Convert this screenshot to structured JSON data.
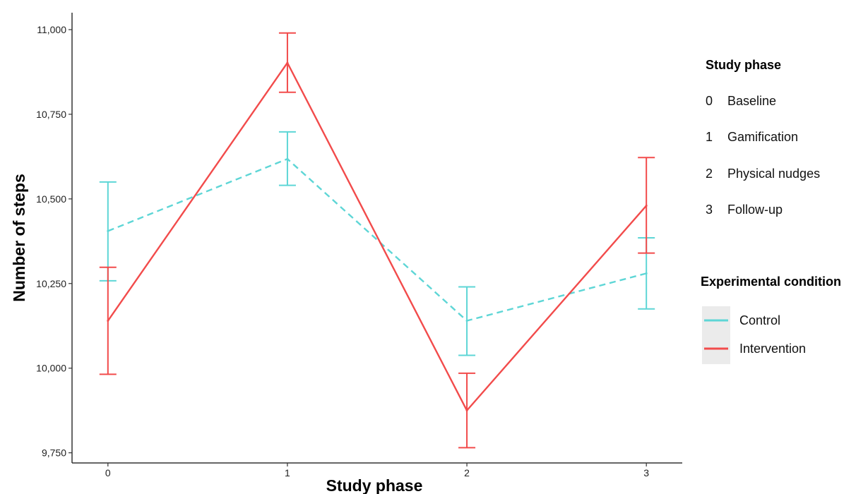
{
  "chart_data": {
    "type": "line",
    "xlabel": "Study phase",
    "ylabel": "Number of steps",
    "x": [
      0,
      1,
      2,
      3
    ],
    "x_tick_labels": [
      "0",
      "1",
      "2",
      "3"
    ],
    "y_ticks": [
      9750,
      10000,
      10250,
      10500,
      10750,
      11000
    ],
    "y_tick_labels": [
      "9,750",
      "10,000",
      "10,250",
      "10,500",
      "10,750",
      "11,000"
    ],
    "ylim": [
      9720,
      11050
    ],
    "xlim": [
      -0.2,
      3.2
    ],
    "grid": false,
    "error_bars": true,
    "series": [
      {
        "name": "Control",
        "color": "#5ED6D6",
        "line_style": "dashed",
        "values": [
          10405,
          10618,
          10140,
          10280
        ],
        "lower": [
          10258,
          10540,
          10038,
          10175
        ],
        "upper": [
          10550,
          10698,
          10240,
          10385
        ]
      },
      {
        "name": "Intervention",
        "color": "#F24B4B",
        "line_style": "solid",
        "values": [
          10140,
          10902,
          9875,
          10480
        ],
        "lower": [
          9982,
          10815,
          9765,
          10340
        ],
        "upper": [
          10298,
          10990,
          9985,
          10622
        ]
      }
    ],
    "legend": {
      "placement": "right",
      "phase_title": "Study phase",
      "phase_items": [
        {
          "code": "0",
          "label": "Baseline"
        },
        {
          "code": "1",
          "label": "Gamification"
        },
        {
          "code": "2",
          "label": "Physical nudges"
        },
        {
          "code": "3",
          "label": "Follow-up"
        }
      ],
      "condition_title": "Experimental condition",
      "condition_items": [
        "Control",
        "Intervention"
      ]
    }
  }
}
